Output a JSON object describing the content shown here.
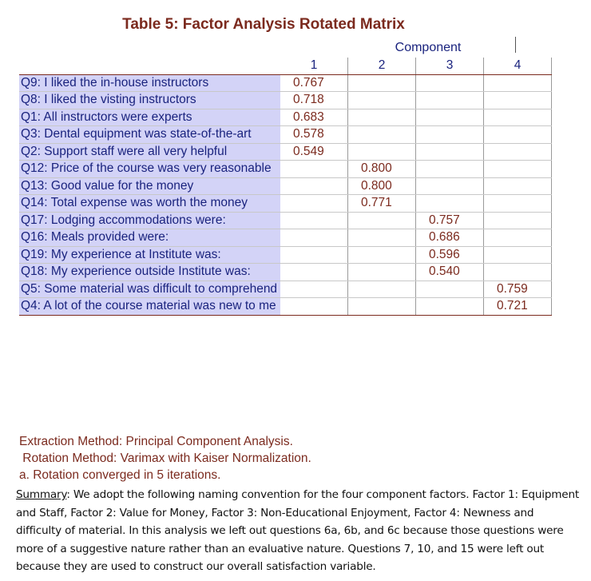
{
  "title": "Table 5: Factor Analysis Rotated Matrix",
  "component_header": "Component",
  "columns": [
    "1",
    "2",
    "3",
    "4"
  ],
  "rows": [
    {
      "label": "Q9: I liked the in-house instructors",
      "values": [
        "0.767",
        "",
        "",
        ""
      ]
    },
    {
      "label": "Q8: I liked the visting instructors",
      "values": [
        "0.718",
        "",
        "",
        ""
      ]
    },
    {
      "label": "Q1: All instructors were experts",
      "values": [
        "0.683",
        "",
        "",
        ""
      ]
    },
    {
      "label": "Q3: Dental equipment was state-of-the-art",
      "values": [
        "0.578",
        "",
        "",
        ""
      ]
    },
    {
      "label": "Q2: Support staff were all very helpful",
      "values": [
        "0.549",
        "",
        "",
        ""
      ]
    },
    {
      "label": "Q12: Price of the course was very reasonable",
      "values": [
        "",
        "0.800",
        "",
        ""
      ]
    },
    {
      "label": "Q13: Good value for the money",
      "values": [
        "",
        "0.800",
        "",
        ""
      ]
    },
    {
      "label": "Q14: Total expense was worth the money",
      "values": [
        "",
        "0.771",
        "",
        ""
      ]
    },
    {
      "label": "Q17: Lodging accommodations were:",
      "values": [
        "",
        "",
        "0.757",
        ""
      ]
    },
    {
      "label": "Q16: Meals provided were:",
      "values": [
        "",
        "",
        "0.686",
        ""
      ]
    },
    {
      "label": "Q19: My experience at Institute was:",
      "values": [
        "",
        "",
        "0.596",
        ""
      ]
    },
    {
      "label": "Q18: My experience outside Institute was:",
      "values": [
        "",
        "",
        "0.540",
        ""
      ]
    },
    {
      "label": "Q5: Some material was difficult to comprehend",
      "values": [
        "",
        "",
        "",
        "0.759"
      ]
    },
    {
      "label": "Q4: A lot of the course material was new to me",
      "values": [
        "",
        "",
        "",
        "0.721"
      ]
    }
  ],
  "notes": {
    "extraction": "Extraction Method: Principal Component Analysis.",
    "rotation": " Rotation Method: Varimax with Kaiser Normalization.",
    "converged": "a. Rotation converged in 5 iterations."
  },
  "summary": {
    "label": "Summary",
    "text": ": We adopt the following naming convention for the four component factors. Factor 1: Equipment and Staff, Factor 2: Value for Money, Factor 3: Non-Educational Enjoyment, Factor 4: Newness and difficulty of material. In this analysis we left out questions 6a, 6b, and 6c because those questions were more of a suggestive nature rather than an evaluative nature. Questions 7, 10, and 15 were left out because they are used to construct our overall satisfaction variable."
  }
}
